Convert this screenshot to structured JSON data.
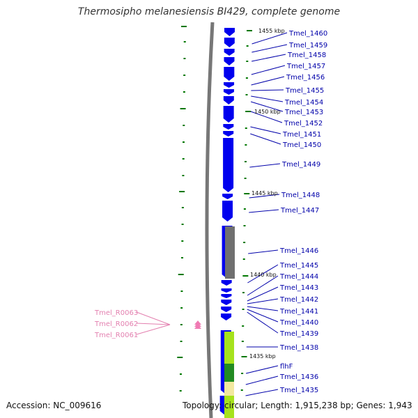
{
  "title": "Thermosipho melanesiensis BI429, complete genome",
  "accession": "Accession: NC_009616",
  "topology": "Topology: circular; Length: 1,915,238 bp; Genes: 1,943",
  "colors": {
    "gene_arrow": "#0000ee",
    "gene_label": "#0000aa",
    "rna_label": "#e37faf",
    "rna_arrow": "#f07ab3",
    "scale_tick": "#007700",
    "backbone": "#777777",
    "feature_gray": "#6f6f6f",
    "feature_lime": "#a6e21d",
    "feature_green": "#228b22",
    "feature_yellow": "#f2e8a0"
  },
  "scale_labels": [
    "1455 kbp",
    "1450 kbp",
    "1445 kbp",
    "1440 kbp",
    "1435 kbp"
  ],
  "gene_labels": [
    "Tmel_1460",
    "Tmel_1459",
    "Tmel_1458",
    "Tmel_1457",
    "Tmel_1456",
    "Tmel_1455",
    "Tmel_1454",
    "Tmel_1453",
    "Tmel_1452",
    "Tmel_1451",
    "Tmel_1450",
    "Tmel_1449",
    "Tmel_1448",
    "Tmel_1447",
    "Tmel_1446",
    "Tmel_1445",
    "Tmel_1444",
    "Tmel_1443",
    "Tmel_1442",
    "Tmel_1441",
    "Tmel_1440",
    "Tmel_1439",
    "Tmel_1438",
    "flhF",
    "Tmel_1436",
    "Tmel_1435"
  ],
  "rna_labels": [
    "Tmel_R0063",
    "Tmel_R0062",
    "Tmel_R0061"
  ]
}
